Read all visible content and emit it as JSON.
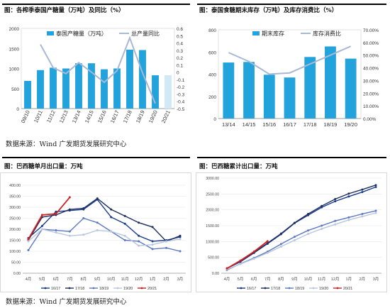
{
  "panels": {
    "p1_title": "图：各榨季泰国产糖量（万吨）及同比（%）",
    "p2_title": "图：泰国食糖期末库存（万吨）及库存消费比（%）",
    "p3_title": "图：巴西糖单月出口量：万吨",
    "p4_title": "图：巴西糖累计出口量：万吨",
    "source_top": "数据来源：Wind 广发期货发展研究中心",
    "source_bottom": "数据来源：Wind 广发期货发展研究中心"
  },
  "colors": {
    "bar": "#22a3dc",
    "ratio_line": "#a8b8d6",
    "s1617": "#1a3c8c",
    "s1718": "#1f2f5e",
    "s1819": "#5b79c2",
    "s1920": "#b9c6de",
    "s2021": "#d42020"
  },
  "chart_data": [
    {
      "type": "bar",
      "categories": [
        "09/10",
        "10/11",
        "11/12",
        "12/13",
        "13/14",
        "14/15",
        "15/16",
        "16/17",
        "17/18",
        "18/19",
        "19/20",
        "20/21"
      ],
      "series": [
        {
          "name": "泰国产糖量（万吨）",
          "type": "bar",
          "values": [
            690,
            960,
            1020,
            1000,
            1130,
            1130,
            980,
            1000,
            1470,
            1460,
            830,
            830
          ]
        },
        {
          "name": "总产量同比",
          "type": "line",
          "axis": "right",
          "values": [
            null,
            0.38,
            0.06,
            -0.02,
            0.13,
            0.0,
            -0.14,
            0.02,
            0.47,
            -0.01,
            -0.43,
            null
          ]
        }
      ],
      "ylim": [
        0,
        2000
      ],
      "y_ticks": [
        "0",
        "500",
        "1000",
        "1500",
        "2000"
      ],
      "y2lim": [
        -0.5,
        0.6
      ],
      "y2_ticks": [
        "0.6",
        "0.5",
        "0.4",
        "0.3",
        "0.2",
        "0.1",
        "0",
        "-0.1",
        "-0.2",
        "-0.3",
        "-0.4",
        "-0.5"
      ]
    },
    {
      "type": "bar",
      "categories": [
        "13/14",
        "14/15",
        "15/16",
        "16/17",
        "17/18",
        "18/19",
        "19/20"
      ],
      "series": [
        {
          "name": "期末库存",
          "type": "bar",
          "values": [
            505,
            510,
            395,
            370,
            555,
            650,
            540
          ]
        },
        {
          "name": "库存消费比",
          "type": "line",
          "axis": "right",
          "values": [
            52,
            45,
            35,
            36,
            43,
            50,
            57
          ]
        }
      ],
      "ylim": [
        0,
        800
      ],
      "y_ticks": [
        "0",
        "200",
        "400",
        "600",
        "800"
      ],
      "y2lim": [
        0,
        70
      ],
      "y2_ticks": [
        "0.00%",
        "10.00%",
        "20.00%",
        "30.00%",
        "40.00%",
        "50.00%",
        "60.00%",
        "70.00%"
      ]
    },
    {
      "type": "line",
      "categories": [
        "4月",
        "5月",
        "6月",
        "7月",
        "8月",
        "9月",
        "10月",
        "11月",
        "12月",
        "1月",
        "2月",
        "3月"
      ],
      "series": [
        {
          "name": "16/17",
          "values": [
            160,
            215,
            280,
            285,
            290,
            335,
            255,
            225,
            170,
            145,
            150,
            165
          ]
        },
        {
          "name": "17/18",
          "values": [
            150,
            255,
            265,
            290,
            295,
            340,
            290,
            260,
            230,
            210,
            145,
            170
          ]
        },
        {
          "name": "18/19",
          "values": [
            105,
            200,
            195,
            190,
            250,
            230,
            190,
            150,
            145,
            110,
            115,
            100
          ]
        },
        {
          "name": "19/20",
          "values": [
            145,
            200,
            185,
            170,
            175,
            195,
            190,
            170,
            125,
            130,
            145,
            155
          ]
        },
        {
          "name": "20/21",
          "values": [
            155,
            265,
            270,
            345,
            null,
            null,
            null,
            null,
            null,
            null,
            null,
            null
          ]
        }
      ],
      "ylim": [
        0,
        400
      ],
      "y_ticks": [
        "0.00",
        "50.00",
        "100.00",
        "150.00",
        "200.00",
        "250.00",
        "300.00",
        "350.00",
        "400.00"
      ]
    },
    {
      "type": "line",
      "categories": [
        "4月",
        "5月",
        "6月",
        "7月",
        "8月",
        "9月",
        "10月",
        "11月",
        "12月",
        "1月",
        "2月",
        "3月"
      ],
      "series": [
        {
          "name": "16/17",
          "values": [
            150,
            360,
            640,
            930,
            1230,
            1580,
            1830,
            2080,
            2270,
            2420,
            2560,
            2720
          ]
        },
        {
          "name": "17/18",
          "values": [
            155,
            380,
            650,
            950,
            1250,
            1590,
            1870,
            2120,
            2340,
            2510,
            2640,
            2780
          ]
        },
        {
          "name": "18/19",
          "values": [
            100,
            300,
            480,
            680,
            920,
            1150,
            1350,
            1500,
            1650,
            1760,
            1870,
            1970
          ]
        },
        {
          "name": "19/20",
          "values": [
            120,
            290,
            460,
            640,
            840,
            1040,
            1240,
            1400,
            1540,
            1680,
            1790,
            1900
          ]
        },
        {
          "name": "20/21",
          "values": [
            150,
            400,
            680,
            1010,
            null,
            null,
            null,
            null,
            null,
            null,
            null,
            null
          ]
        }
      ],
      "ylim": [
        0,
        3000
      ],
      "y_ticks": [
        "0.00",
        "500.00",
        "1000.00",
        "1500.00",
        "2000.00",
        "2500.00",
        "3000.00"
      ]
    }
  ]
}
